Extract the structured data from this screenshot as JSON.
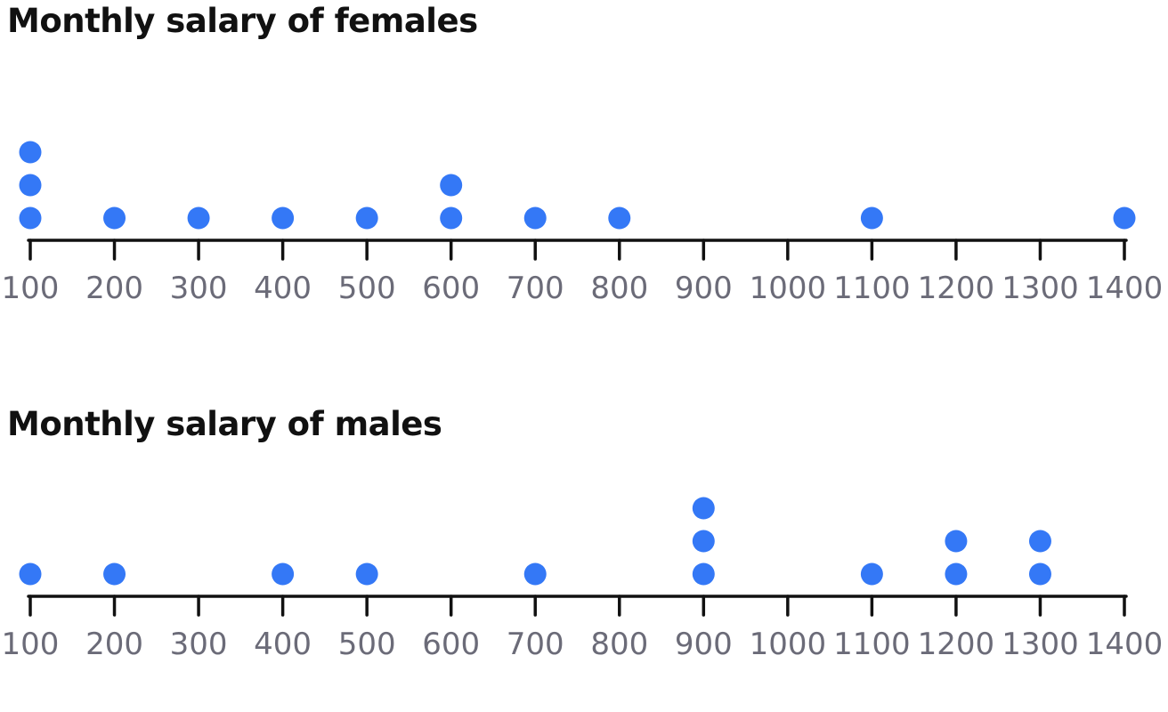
{
  "chart_data": [
    {
      "type": "dot-plot",
      "title": "Monthly salary of females",
      "xlabel": "",
      "ylabel": "",
      "xlim": [
        100,
        1400
      ],
      "ticks": [
        100,
        200,
        300,
        400,
        500,
        600,
        700,
        800,
        900,
        1000,
        1100,
        1200,
        1300,
        1400
      ],
      "tick_labels": [
        "100",
        "200",
        "300",
        "400",
        "500",
        "600",
        "700",
        "800",
        "900",
        "1000",
        "1100",
        "1200",
        "1300",
        "1400"
      ],
      "values": [
        100,
        100,
        100,
        200,
        300,
        400,
        500,
        600,
        600,
        700,
        800,
        1100,
        1400
      ],
      "counts": [
        {
          "x": 100,
          "count": 3
        },
        {
          "x": 200,
          "count": 1
        },
        {
          "x": 300,
          "count": 1
        },
        {
          "x": 400,
          "count": 1
        },
        {
          "x": 500,
          "count": 1
        },
        {
          "x": 600,
          "count": 2
        },
        {
          "x": 700,
          "count": 1
        },
        {
          "x": 800,
          "count": 1
        },
        {
          "x": 1100,
          "count": 1
        },
        {
          "x": 1400,
          "count": 1
        }
      ]
    },
    {
      "type": "dot-plot",
      "title": "Monthly salary of males",
      "xlabel": "",
      "ylabel": "",
      "xlim": [
        100,
        1400
      ],
      "ticks": [
        100,
        200,
        300,
        400,
        500,
        600,
        700,
        800,
        900,
        1000,
        1100,
        1200,
        1300,
        1400
      ],
      "tick_labels": [
        "100",
        "200",
        "300",
        "400",
        "500",
        "600",
        "700",
        "800",
        "900",
        "1000",
        "1100",
        "1200",
        "1300",
        "1400"
      ],
      "values": [
        100,
        200,
        400,
        500,
        700,
        900,
        900,
        900,
        1100,
        1200,
        1200,
        1300,
        1300
      ],
      "counts": [
        {
          "x": 100,
          "count": 1
        },
        {
          "x": 200,
          "count": 1
        },
        {
          "x": 400,
          "count": 1
        },
        {
          "x": 500,
          "count": 1
        },
        {
          "x": 700,
          "count": 1
        },
        {
          "x": 900,
          "count": 3
        },
        {
          "x": 1100,
          "count": 1
        },
        {
          "x": 1200,
          "count": 2
        },
        {
          "x": 1300,
          "count": 2
        }
      ]
    }
  ],
  "colors": {
    "dot": "#3478f6",
    "axis": "#111111",
    "tick_label": "#6b6b78",
    "title": "#111111"
  }
}
